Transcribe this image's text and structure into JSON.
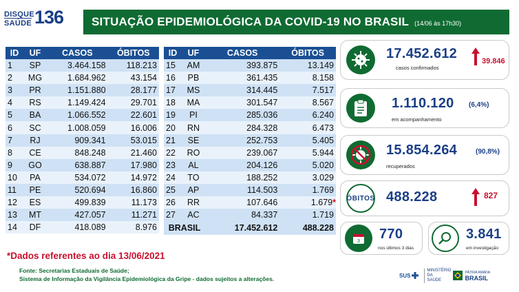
{
  "logo": {
    "line1": "DISQUE",
    "line2": "SAÚDE",
    "number": "136"
  },
  "header": {
    "title": "SITUAÇÃO EPIDEMIOLÓGICA DA COVID-19 NO BRASIL",
    "date": "(14/06 às 17h30)"
  },
  "columns": {
    "id": "ID",
    "uf": "UF",
    "casos": "CASOS",
    "obitos": "ÓBITOS"
  },
  "left_rows": [
    {
      "id": "1",
      "uf": "SP",
      "casos": "3.464.158",
      "obitos": "118.213"
    },
    {
      "id": "2",
      "uf": "MG",
      "casos": "1.684.962",
      "obitos": "43.154"
    },
    {
      "id": "3",
      "uf": "PR",
      "casos": "1.151.880",
      "obitos": "28.177"
    },
    {
      "id": "4",
      "uf": "RS",
      "casos": "1.149.424",
      "obitos": "29.701"
    },
    {
      "id": "5",
      "uf": "BA",
      "casos": "1.066.552",
      "obitos": "22.601"
    },
    {
      "id": "6",
      "uf": "SC",
      "casos": "1.008.059",
      "obitos": "16.006"
    },
    {
      "id": "7",
      "uf": "RJ",
      "casos": "909.341",
      "obitos": "53.015"
    },
    {
      "id": "8",
      "uf": "CE",
      "casos": "848.248",
      "obitos": "21.460"
    },
    {
      "id": "9",
      "uf": "GO",
      "casos": "638.887",
      "obitos": "17.980"
    },
    {
      "id": "10",
      "uf": "PA",
      "casos": "534.072",
      "obitos": "14.972"
    },
    {
      "id": "11",
      "uf": "PE",
      "casos": "520.694",
      "obitos": "16.860"
    },
    {
      "id": "12",
      "uf": "ES",
      "casos": "499.839",
      "obitos": "11.173"
    },
    {
      "id": "13",
      "uf": "MT",
      "casos": "427.057",
      "obitos": "11.271"
    },
    {
      "id": "14",
      "uf": "DF",
      "casos": "418.089",
      "obitos": "8.976"
    }
  ],
  "right_rows": [
    {
      "id": "15",
      "uf": "AM",
      "casos": "393.875",
      "obitos": "13.149"
    },
    {
      "id": "16",
      "uf": "PB",
      "casos": "361.435",
      "obitos": "8.158"
    },
    {
      "id": "17",
      "uf": "MS",
      "casos": "314.445",
      "obitos": "7.517"
    },
    {
      "id": "18",
      "uf": "MA",
      "casos": "301.547",
      "obitos": "8.567"
    },
    {
      "id": "19",
      "uf": "PI",
      "casos": "285.036",
      "obitos": "6.240"
    },
    {
      "id": "20",
      "uf": "RN",
      "casos": "284.328",
      "obitos": "6.473"
    },
    {
      "id": "21",
      "uf": "SE",
      "casos": "252.753",
      "obitos": "5.405"
    },
    {
      "id": "22",
      "uf": "RO",
      "casos": "239.067",
      "obitos": "5.944"
    },
    {
      "id": "23",
      "uf": "AL",
      "casos": "204.126",
      "obitos": "5.020"
    },
    {
      "id": "24",
      "uf": "TO",
      "casos": "188.252",
      "obitos": "3.029"
    },
    {
      "id": "25",
      "uf": "AP",
      "casos": "114.503",
      "obitos": "1.769"
    },
    {
      "id": "26",
      "uf": "RR",
      "casos": "107.646",
      "obitos": "1.679",
      "star": "*"
    },
    {
      "id": "27",
      "uf": "AC",
      "casos": "84.337",
      "obitos": "1.719"
    }
  ],
  "total": {
    "label": "BRASIL",
    "casos": "17.452.612",
    "obitos": "488.228"
  },
  "note": "*Dados referentes ao dia 13/06/2021",
  "source_line1": "Fonte: Secretarias Estaduais de Saúde;",
  "source_line2": "Sistema de Informação da Vigilância Epidemiológica da Gripe - dados sujeitos a alterações.",
  "stats": {
    "confirmed": {
      "value": "17.452.612",
      "label": "casos confirmados",
      "delta": "39.846"
    },
    "monitoring": {
      "value": "1.110.120",
      "pct": "(6,4%)",
      "label": "em acompanhamento"
    },
    "recovered": {
      "value": "15.854.264",
      "pct": "(90,8%)",
      "label": "recuperados"
    },
    "deaths": {
      "tag": "ÓBITOS",
      "value": "488.228",
      "delta": "827"
    },
    "recent": {
      "value": "770",
      "label": "nos últimos 3 dias"
    },
    "investigating": {
      "value": "3.841",
      "label": "em investigação"
    }
  },
  "footer": {
    "sus": "SUS",
    "ministry": "MINISTÉRIO DA SAÚDE",
    "gov_line1": "PÁTRIA AMADA",
    "gov_line2": "BRASIL"
  },
  "colors": {
    "green": "#0f6b32",
    "blue": "#1b4f93",
    "red": "#c8102e",
    "row": "#cfe1f4"
  }
}
